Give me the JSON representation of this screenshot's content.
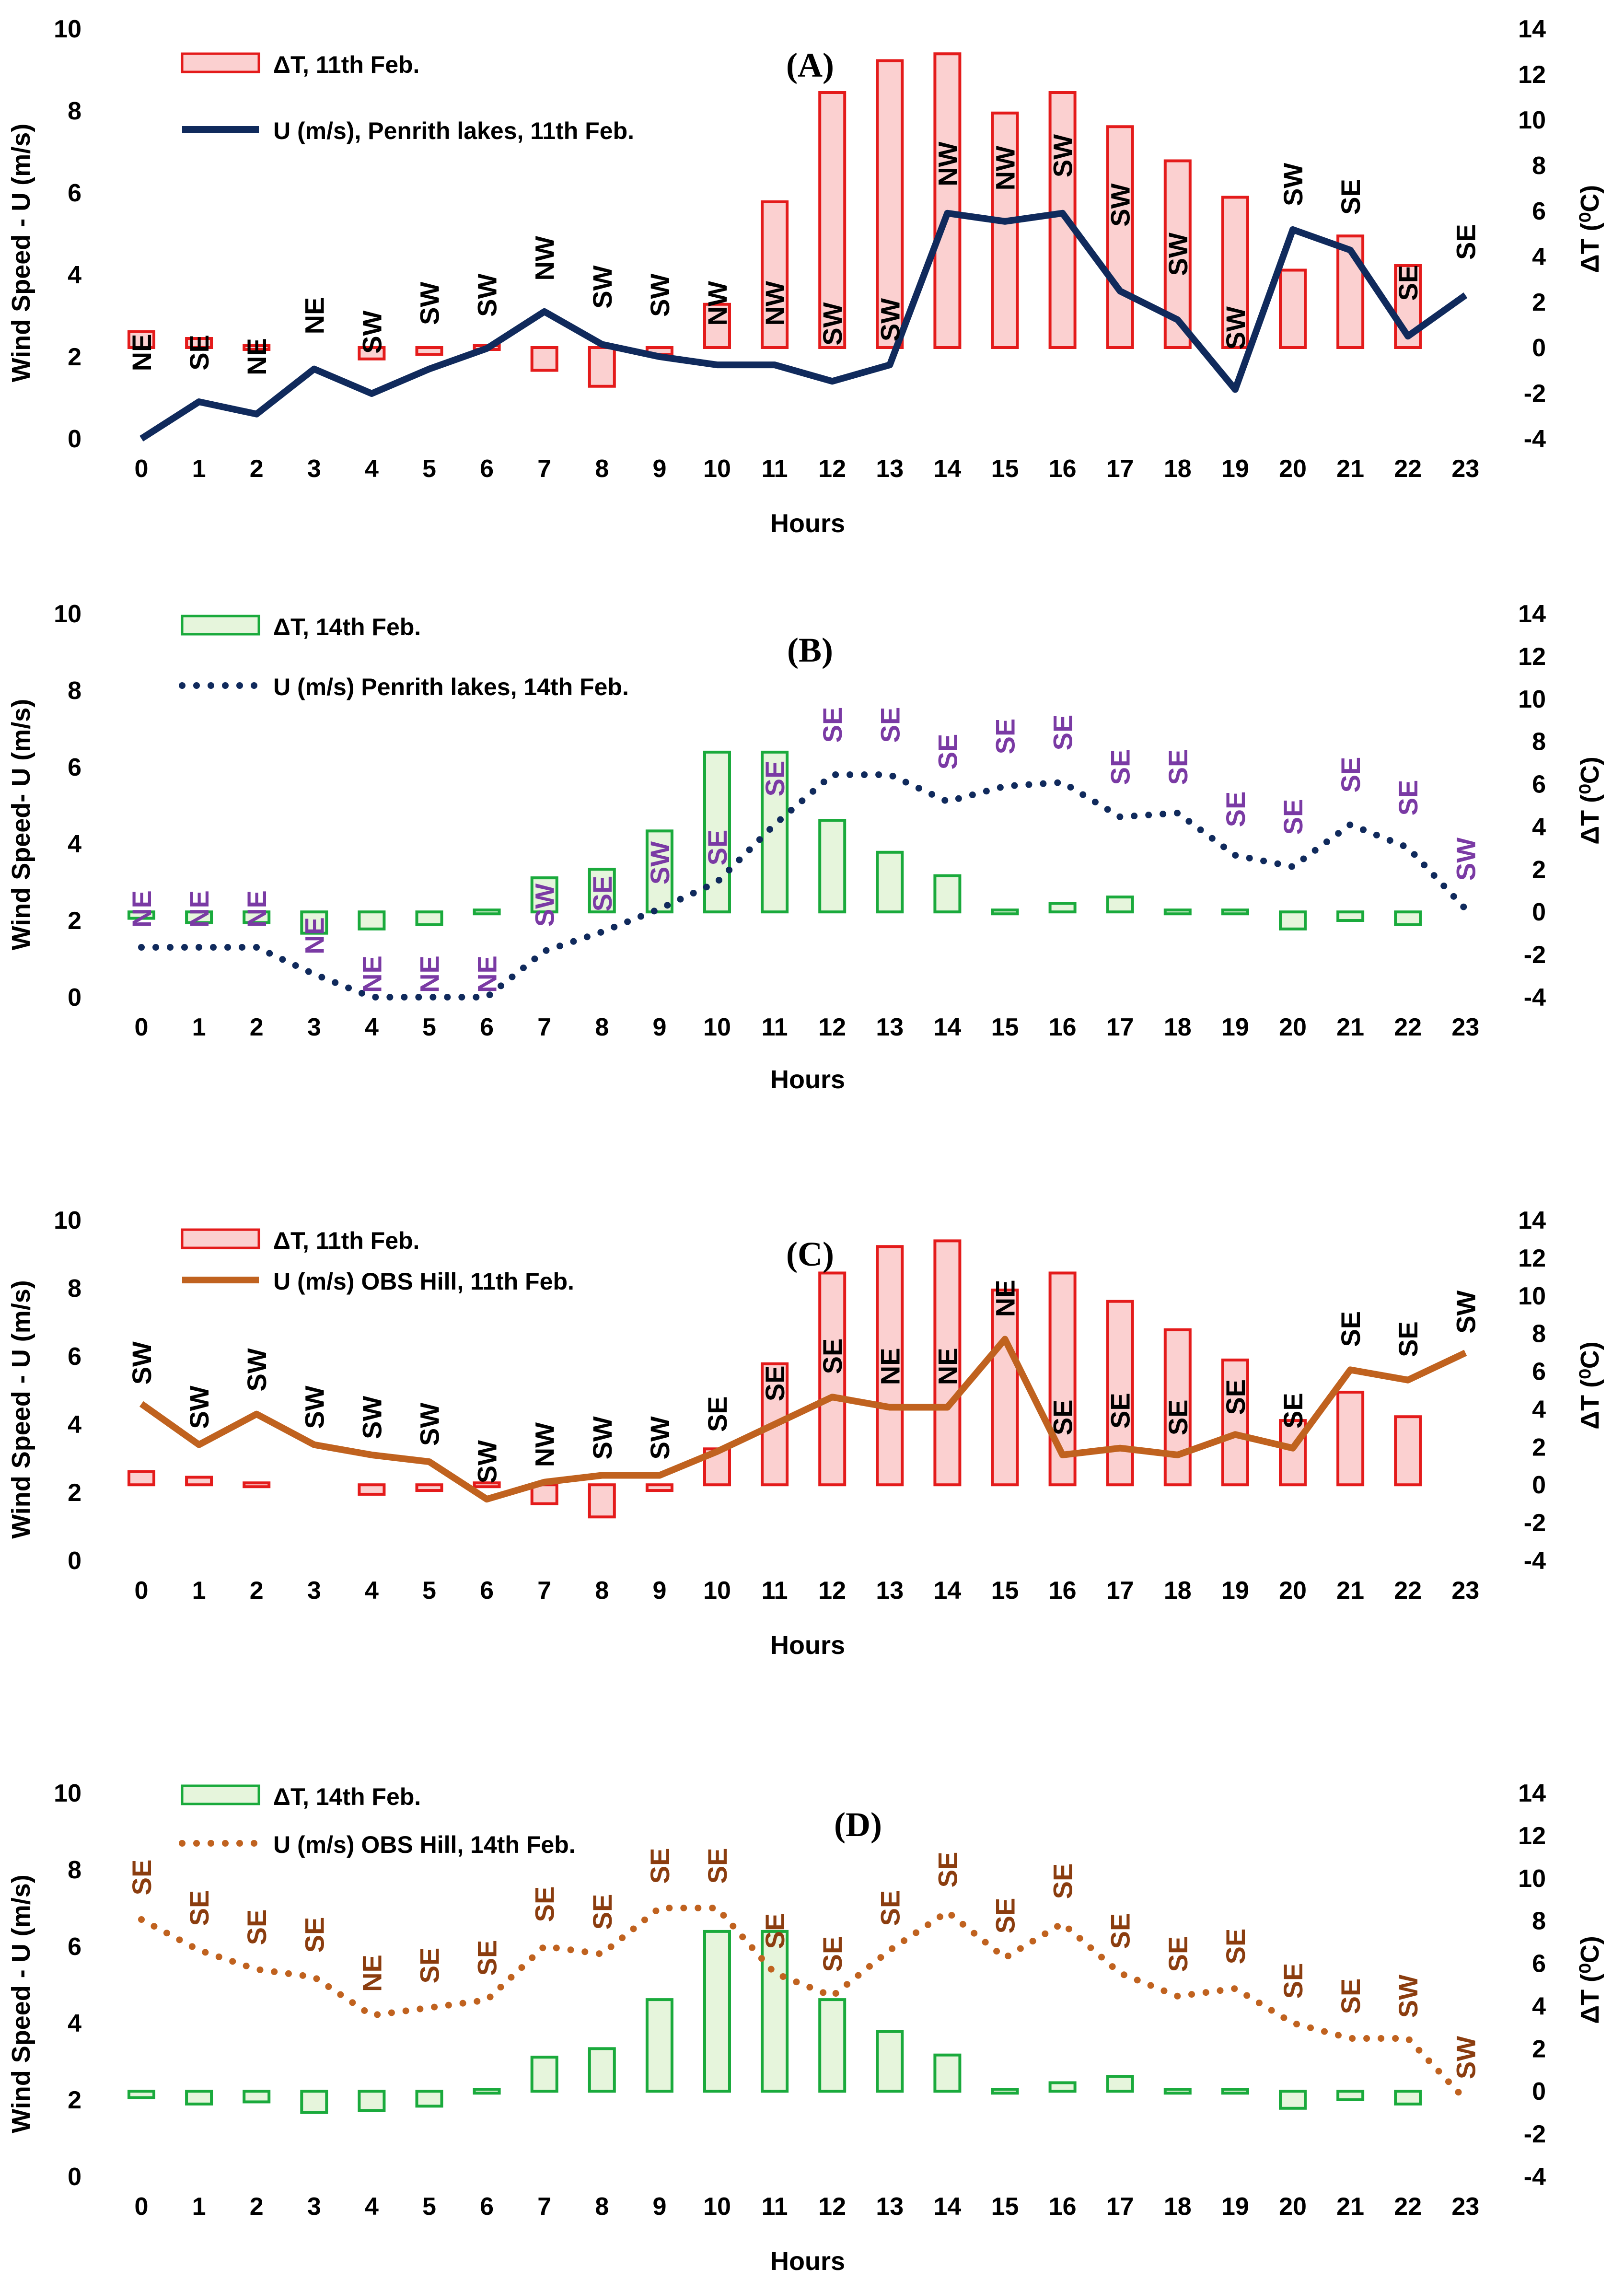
{
  "colors": {
    "bar_red_fill": "#fbd0d0",
    "bar_red_stroke": "#e41b1b",
    "bar_green_fill": "#e6f5dc",
    "bar_green_stroke": "#1aaa3c",
    "line_navy": "#102a5c",
    "line_orange": "#c0621f",
    "dir_black": "#000000",
    "dir_purple": "#7a3aa4",
    "dir_brown": "#8b3d0f"
  },
  "chart_data": [
    {
      "id": "A",
      "type": "bar+line",
      "title": "(A)",
      "xlabel": "Hours",
      "ylabel": "Wind Speed - U (m/s)",
      "y2label": "ΔT (⁰C)",
      "categories": [
        "0",
        "1",
        "2",
        "3",
        "4",
        "5",
        "6",
        "7",
        "8",
        "9",
        "10",
        "11",
        "12",
        "13",
        "14",
        "15",
        "16",
        "17",
        "18",
        "19",
        "20",
        "21",
        "22",
        "23"
      ],
      "ylim": [
        0,
        10
      ],
      "yticks": [
        "0",
        "2",
        "4",
        "6",
        "8",
        "10"
      ],
      "y2lim": [
        -4,
        14
      ],
      "y2ticks": [
        "-4",
        "-2",
        "0",
        "2",
        "4",
        "6",
        "8",
        "10",
        "12",
        "14"
      ],
      "legend_position": "top-left",
      "bar_series": {
        "name": "ΔT, 11th Feb.",
        "style": "red",
        "values": [
          0.7,
          0.4,
          0.1,
          null,
          -0.5,
          -0.3,
          0.1,
          -1.0,
          -1.7,
          -0.3,
          1.9,
          6.4,
          11.2,
          12.6,
          12.9,
          10.3,
          11.2,
          9.7,
          8.2,
          6.6,
          3.4,
          4.9,
          3.6,
          null
        ]
      },
      "line_series": {
        "name": "U (m/s), Penrith lakes, 11th Feb.",
        "style": "solid",
        "color": "navy",
        "values": [
          0.0,
          0.9,
          0.6,
          1.7,
          1.1,
          1.7,
          2.2,
          3.1,
          2.3,
          2.0,
          1.8,
          1.8,
          1.4,
          1.8,
          5.5,
          5.3,
          5.5,
          3.6,
          2.9,
          1.2,
          5.1,
          4.6,
          2.5,
          3.5
        ]
      },
      "directions": [
        "NE",
        "SE",
        "NE",
        "NE",
        "SW",
        "SW",
        "SW",
        "NW",
        "SW",
        "SW",
        "NW",
        "NW",
        "SW",
        "SW",
        "NW",
        "NW",
        "SW",
        "SW",
        "SW",
        "SW",
        "SW",
        "SE",
        "SE",
        "SE"
      ],
      "direction_y": [
        2.1,
        2.1,
        2.0,
        3.0,
        2.6,
        3.3,
        3.5,
        4.4,
        3.7,
        3.5,
        3.3,
        3.3,
        2.8,
        2.9,
        6.7,
        6.6,
        6.9,
        5.7,
        4.5,
        2.7,
        6.2,
        5.9,
        3.8,
        4.8
      ],
      "direction_style": "black"
    },
    {
      "id": "B",
      "type": "bar+line",
      "title": "(B)",
      "xlabel": "Hours",
      "ylabel": "Wind Speed- U (m/s)",
      "y2label": "ΔT (⁰C)",
      "categories": [
        "0",
        "1",
        "2",
        "3",
        "4",
        "5",
        "6",
        "7",
        "8",
        "9",
        "10",
        "11",
        "12",
        "13",
        "14",
        "15",
        "16",
        "17",
        "18",
        "19",
        "20",
        "21",
        "22",
        "23"
      ],
      "ylim": [
        0,
        10
      ],
      "yticks": [
        "0",
        "2",
        "4",
        "6",
        "8",
        "10"
      ],
      "y2lim": [
        -4,
        14
      ],
      "y2ticks": [
        "-4",
        "-2",
        "0",
        "2",
        "4",
        "6",
        "8",
        "10",
        "12",
        "14"
      ],
      "legend_position": "top-left",
      "bar_series": {
        "name": "ΔT, 14th Feb.",
        "style": "green",
        "values": [
          -0.3,
          -0.5,
          -0.5,
          -1.0,
          -0.8,
          -0.6,
          0.1,
          1.6,
          2.0,
          3.8,
          7.5,
          7.5,
          4.3,
          2.8,
          1.7,
          0.1,
          0.4,
          0.7,
          -0.1,
          0.0,
          -0.8,
          -0.4,
          -0.6,
          null
        ]
      },
      "line_series": {
        "name": "U (m/s)  Penrith lakes, 14th Feb.",
        "style": "dotted",
        "color": "navy",
        "values": [
          1.3,
          1.3,
          1.3,
          0.6,
          0.0,
          0.0,
          0.0,
          1.2,
          1.7,
          2.3,
          3.0,
          4.5,
          5.8,
          5.8,
          5.1,
          5.5,
          5.6,
          4.7,
          4.8,
          3.7,
          3.4,
          4.5,
          3.9,
          2.3
        ]
      },
      "directions": [
        "NE",
        "NE",
        "NE",
        "NE",
        "NE",
        "NE",
        "NE",
        "SW",
        "SE",
        "SW",
        "SE",
        "SE",
        "SE",
        "SE",
        "SE",
        "SE",
        "SE",
        "SE",
        "SE",
        "SE",
        "SE",
        "SE",
        "SE",
        "SW"
      ],
      "direction_y": [
        2.3,
        2.3,
        2.3,
        1.6,
        0.6,
        0.6,
        0.6,
        2.4,
        2.7,
        3.5,
        3.9,
        5.7,
        7.1,
        7.1,
        6.4,
        6.8,
        6.9,
        6.0,
        6.0,
        4.9,
        4.7,
        5.8,
        5.2,
        3.6
      ],
      "direction_style": "purple"
    },
    {
      "id": "C",
      "type": "bar+line",
      "title": "(C)",
      "xlabel": "Hours",
      "ylabel": "Wind Speed - U (m/s)",
      "y2label": "ΔT (⁰C)",
      "categories": [
        "0",
        "1",
        "2",
        "3",
        "4",
        "5",
        "6",
        "7",
        "8",
        "9",
        "10",
        "11",
        "12",
        "13",
        "14",
        "15",
        "16",
        "17",
        "18",
        "19",
        "20",
        "21",
        "22",
        "23"
      ],
      "ylim": [
        0,
        10
      ],
      "yticks": [
        "0",
        "2",
        "4",
        "6",
        "8",
        "10"
      ],
      "y2lim": [
        -4,
        14
      ],
      "y2ticks": [
        "-4",
        "-2",
        "0",
        "2",
        "4",
        "6",
        "8",
        "10",
        "12",
        "14"
      ],
      "legend_position": "top-left",
      "bar_series": {
        "name": "ΔT, 11th Feb.",
        "style": "red",
        "values": [
          0.7,
          0.4,
          0.1,
          null,
          -0.5,
          -0.3,
          0.1,
          -1.0,
          -1.7,
          -0.3,
          1.9,
          6.4,
          11.2,
          12.6,
          12.9,
          10.3,
          11.2,
          9.7,
          8.2,
          6.6,
          3.4,
          4.9,
          3.6,
          null
        ]
      },
      "line_series": {
        "name": "U (m/s)  OBS Hill, 11th Feb.",
        "style": "solid",
        "color": "orange",
        "values": [
          4.6,
          3.4,
          4.3,
          3.4,
          3.1,
          2.9,
          1.8,
          2.3,
          2.5,
          2.5,
          3.2,
          4.0,
          4.8,
          4.5,
          4.5,
          6.5,
          3.1,
          3.3,
          3.1,
          3.7,
          3.3,
          5.6,
          5.3,
          6.1
        ],
        "note": "first value 4.6 anchors at hour 0"
      },
      "directions": [
        "SW",
        "SW",
        "SW",
        "SW",
        "SW",
        "SW",
        "SW",
        "NW",
        "SW",
        "SW",
        "SE",
        "SE",
        "SE",
        "NE",
        "NE",
        "NE",
        "SE",
        "SE",
        "SE",
        "SE",
        "SE",
        "SE",
        "SE",
        "SW"
      ],
      "direction_y": [
        5.8,
        4.5,
        5.6,
        4.5,
        4.2,
        4.0,
        2.9,
        3.4,
        3.6,
        3.6,
        4.3,
        5.2,
        6.0,
        5.7,
        5.7,
        7.7,
        4.2,
        4.4,
        4.2,
        4.8,
        4.4,
        6.8,
        6.5,
        7.3
      ],
      "direction_style": "black"
    },
    {
      "id": "D",
      "type": "bar+line",
      "title": "(D)",
      "xlabel": "Hours",
      "ylabel": "Wind Speed - U (m/s)",
      "y2label": "ΔT (⁰C)",
      "categories": [
        "0",
        "1",
        "2",
        "3",
        "4",
        "5",
        "6",
        "7",
        "8",
        "9",
        "10",
        "11",
        "12",
        "13",
        "14",
        "15",
        "16",
        "17",
        "18",
        "19",
        "20",
        "21",
        "22",
        "23"
      ],
      "ylim": [
        0,
        10
      ],
      "yticks": [
        "0",
        "2",
        "4",
        "6",
        "8",
        "10"
      ],
      "y2lim": [
        -4,
        14
      ],
      "y2ticks": [
        "-4",
        "-2",
        "0",
        "2",
        "4",
        "6",
        "8",
        "10",
        "12",
        "14"
      ],
      "legend_position": "top-left",
      "bar_series": {
        "name": "ΔT, 14th Feb.",
        "style": "green",
        "values": [
          -0.3,
          -0.6,
          -0.5,
          -1.0,
          -0.9,
          -0.7,
          0.1,
          1.6,
          2.0,
          4.3,
          7.5,
          7.5,
          4.3,
          2.8,
          1.7,
          0.1,
          0.4,
          0.7,
          -0.1,
          0.0,
          -0.8,
          -0.4,
          -0.6,
          null
        ]
      },
      "line_series": {
        "name": "U (m/s)  OBS Hill, 14th Feb.",
        "style": "dotted",
        "color": "orange",
        "values": [
          6.7,
          5.9,
          5.4,
          5.2,
          4.2,
          4.4,
          4.6,
          6.0,
          5.8,
          7.0,
          7.0,
          5.3,
          4.7,
          5.9,
          6.9,
          5.7,
          6.6,
          5.3,
          4.7,
          4.9,
          4.0,
          3.6,
          3.6,
          2.0
        ]
      },
      "directions": [
        "SE",
        "SE",
        "SE",
        "SE",
        "NE",
        "SE",
        "SE",
        "SE",
        "SE",
        "SE",
        "SE",
        "SE",
        "SE",
        "SE",
        "SE",
        "SE",
        "SE",
        "SE",
        "SE",
        "SE",
        "SE",
        "SE",
        "SW",
        "SW"
      ],
      "direction_y": [
        7.8,
        7.0,
        6.5,
        6.3,
        5.3,
        5.5,
        5.7,
        7.1,
        6.9,
        8.1,
        8.1,
        6.4,
        5.8,
        7.0,
        8.0,
        6.8,
        7.7,
        6.4,
        5.8,
        6.0,
        5.1,
        4.7,
        4.7,
        3.1
      ],
      "direction_style": "brown"
    }
  ]
}
